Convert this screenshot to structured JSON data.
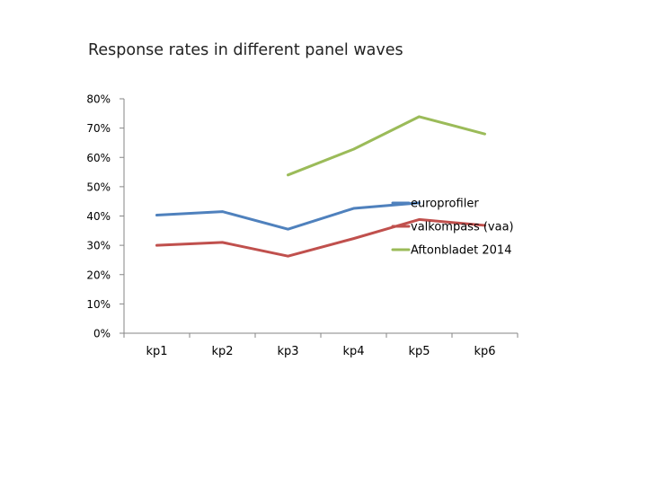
{
  "chart_data": {
    "type": "line",
    "title": "Response rates in different panel waves",
    "xlabel": "",
    "ylabel": "",
    "ylim": [
      0,
      80
    ],
    "y_tick_values": [
      0,
      10,
      20,
      30,
      40,
      50,
      60,
      70,
      80
    ],
    "y_tick_labels": [
      "0%",
      "10%",
      "20%",
      "30%",
      "40%",
      "50%",
      "60%",
      "70%",
      "80%"
    ],
    "categories": [
      "kp1",
      "kp2",
      "kp3",
      "kp4",
      "kp5",
      "kp6"
    ],
    "legend_position": "right",
    "grid": false,
    "series": [
      {
        "name": "europrofiler",
        "color": "#4f81bd",
        "values": [
          40.3,
          41.5,
          35.5,
          42.6,
          44.5,
          null
        ]
      },
      {
        "name": "valkompass (vaa)",
        "color": "#c0504d",
        "values": [
          30.0,
          31.0,
          26.3,
          32.3,
          38.8,
          36.8
        ]
      },
      {
        "name": "Aftonbladet 2014",
        "color": "#9bbb59",
        "values": [
          null,
          null,
          54.0,
          62.8,
          73.9,
          68.0
        ]
      }
    ]
  }
}
